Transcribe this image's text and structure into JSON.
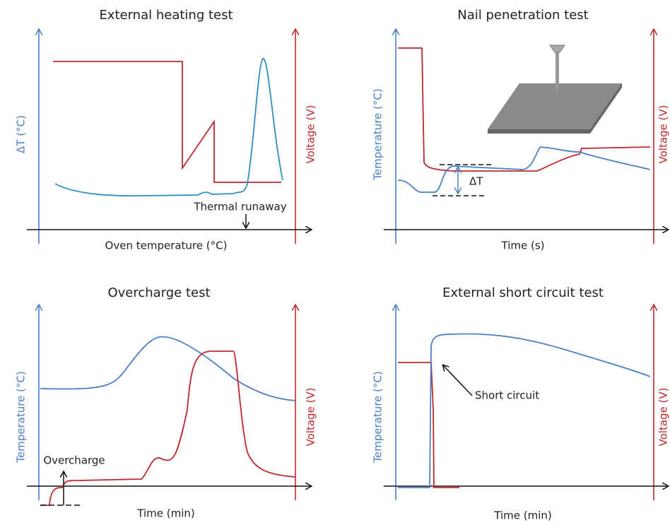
{
  "panels": [
    {
      "title": "External heating test",
      "y_label": "ΔT (°C)",
      "y2_label": "Voltage (V)",
      "x_label": "Oven temperature (°C)",
      "annotations": [
        "Thermal runaway"
      ]
    },
    {
      "title": "Nail penetration test",
      "y_label": "Temperature (°C)",
      "y2_label": "Voltage (V)",
      "x_label": "Time (s)",
      "annotations": [
        "ΔT"
      ]
    },
    {
      "title": "Overcharge test",
      "y_label": "Temperature (°C)",
      "y2_label": "Voltage (V)",
      "x_label": "Time (min)",
      "annotations": [
        "Overcharge"
      ]
    },
    {
      "title": "External short circuit test",
      "y_label": "Temperature (°C)",
      "y2_label": "Voltage (V)",
      "x_label": "Time (min)",
      "annotations": [
        "Short circuit"
      ]
    }
  ]
}
